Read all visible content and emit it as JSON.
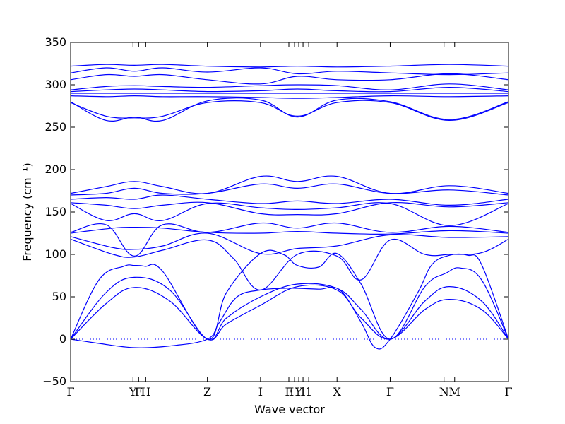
{
  "chart_data": {
    "type": "line",
    "xlabel": "Wave vector",
    "ylabel": "Frequency (cm⁻¹)",
    "ylim": [
      -50,
      350
    ],
    "yticks": [
      -50,
      0,
      50,
      100,
      150,
      200,
      250,
      300,
      350
    ],
    "xlim": [
      0,
      6.18
    ],
    "high_symmetry_points": [
      {
        "label": "Γ",
        "x": 0.0
      },
      {
        "label": "Y",
        "x": 0.88
      },
      {
        "label": "F",
        "x": 0.96
      },
      {
        "label": "H",
        "x": 1.06
      },
      {
        "label": "Z",
        "x": 1.93
      },
      {
        "label": "I",
        "x": 2.68
      },
      {
        "label": "F",
        "x": 3.08
      },
      {
        "label": "H",
        "x": 3.16
      },
      {
        "label": "Y",
        "x": 3.22
      },
      {
        "label": "1",
        "x": 3.28
      },
      {
        "label": "1",
        "x": 3.36
      },
      {
        "label": "X",
        "x": 3.76
      },
      {
        "label": "Γ",
        "x": 4.51
      },
      {
        "label": "N",
        "x": 5.27
      },
      {
        "label": "M",
        "x": 5.42
      },
      {
        "label": "Γ",
        "x": 6.18
      }
    ],
    "zero_line": {
      "y": 0,
      "style": "dotted"
    },
    "series_color": "#0000ff",
    "series": [
      {
        "x": [
          0,
          0.5,
          0.9,
          1.4,
          1.93,
          2.2,
          2.68,
          3.2,
          3.76,
          4.1,
          4.51,
          5.0,
          5.35,
          5.8,
          6.18
        ],
        "values": [
          0,
          42,
          61,
          45,
          0,
          18,
          40,
          62,
          58,
          25,
          0,
          35,
          47,
          35,
          0
        ]
      },
      {
        "x": [
          0,
          0.5,
          0.9,
          1.4,
          1.93,
          2.2,
          2.68,
          3.2,
          3.76,
          4.1,
          4.51,
          5.0,
          5.35,
          5.8,
          6.18
        ],
        "values": [
          0,
          55,
          73,
          58,
          0,
          25,
          50,
          65,
          60,
          35,
          0,
          45,
          62,
          45,
          0
        ]
      },
      {
        "x": [
          0,
          0.4,
          0.75,
          0.9,
          1.05,
          1.3,
          1.93,
          2.2,
          2.68,
          3.0,
          3.2,
          3.5,
          3.76,
          4.1,
          4.51,
          5.0,
          5.3,
          5.5,
          5.8,
          6.18
        ],
        "values": [
          0,
          70,
          86,
          87,
          86,
          80,
          0,
          55,
          101,
          100,
          87,
          85,
          101,
          65,
          0,
          62,
          78,
          84,
          70,
          0
        ]
      },
      {
        "x": [
          0,
          0.4,
          0.9,
          1.4,
          1.93,
          2.1,
          2.35,
          2.68,
          3.0,
          3.2,
          3.5,
          3.8,
          4.1,
          4.3,
          4.51,
          4.9,
          5.1,
          5.35,
          5.6,
          5.8,
          6.18
        ],
        "values": [
          0,
          -5,
          -10,
          -8,
          0,
          20,
          50,
          58,
          60,
          60,
          59,
          58,
          20,
          -10,
          0,
          55,
          88,
          99,
          99,
          88,
          0
        ]
      },
      {
        "x": [
          0,
          0.6,
          0.9,
          1.3,
          1.93,
          2.3,
          2.68,
          3.2,
          3.76,
          4.1,
          4.51,
          5.0,
          5.35,
          5.8,
          6.18
        ],
        "values": [
          118,
          100,
          97,
          105,
          117,
          95,
          58,
          100,
          98,
          70,
          117,
          100,
          100,
          102,
          118
        ]
      },
      {
        "x": [
          0,
          0.6,
          0.9,
          1.3,
          1.93,
          2.68,
          3.2,
          3.76,
          4.51,
          5.35,
          6.18
        ],
        "values": [
          121,
          108,
          106,
          110,
          125,
          101,
          107,
          110,
          123,
          120,
          121
        ]
      },
      {
        "x": [
          0,
          0.6,
          0.9,
          1.3,
          1.93,
          2.68,
          3.2,
          3.76,
          4.51,
          5.35,
          6.18
        ],
        "values": [
          125,
          131,
          132,
          131,
          126,
          125,
          127,
          125,
          124,
          128,
          125
        ]
      },
      {
        "x": [
          0,
          0.5,
          0.9,
          1.3,
          1.93,
          2.68,
          3.2,
          3.76,
          4.51,
          5.35,
          6.18
        ],
        "values": [
          126,
          135,
          98,
          135,
          126,
          137,
          131,
          137,
          126,
          133,
          126
        ]
      },
      {
        "x": [
          0,
          0.5,
          0.9,
          1.3,
          1.93,
          2.68,
          3.2,
          3.76,
          4.51,
          5.35,
          6.18
        ],
        "values": [
          160,
          140,
          148,
          140,
          160,
          155,
          153,
          155,
          160,
          134,
          160
        ]
      },
      {
        "x": [
          0,
          0.5,
          0.9,
          1.3,
          1.93,
          2.68,
          3.2,
          3.76,
          4.51,
          5.35,
          6.18
        ],
        "values": [
          161,
          158,
          154,
          158,
          161,
          148,
          147,
          148,
          161,
          156,
          161
        ]
      },
      {
        "x": [
          0,
          0.5,
          0.9,
          1.3,
          1.93,
          2.68,
          3.2,
          3.76,
          4.51,
          5.35,
          6.18
        ],
        "values": [
          165,
          167,
          165,
          170,
          165,
          160,
          163,
          160,
          165,
          158,
          165
        ]
      },
      {
        "x": [
          0,
          0.5,
          0.9,
          1.3,
          1.93,
          2.68,
          3.2,
          3.76,
          4.51,
          5.35,
          6.18
        ],
        "values": [
          170,
          172,
          178,
          172,
          172,
          183,
          178,
          183,
          172,
          176,
          170
        ]
      },
      {
        "x": [
          0,
          0.5,
          0.9,
          1.3,
          1.93,
          2.68,
          3.2,
          3.76,
          4.51,
          5.35,
          6.18
        ],
        "values": [
          172,
          180,
          186,
          180,
          172,
          192,
          186,
          192,
          172,
          181,
          172
        ]
      },
      {
        "x": [
          0,
          0.5,
          0.9,
          1.3,
          1.93,
          2.68,
          3.2,
          3.76,
          4.51,
          5.35,
          6.18
        ],
        "values": [
          279,
          263,
          261,
          263,
          279,
          279,
          263,
          279,
          279,
          258,
          279
        ]
      },
      {
        "x": [
          0,
          0.5,
          0.9,
          1.3,
          1.93,
          2.68,
          3.2,
          3.76,
          4.51,
          5.35,
          6.18
        ],
        "values": [
          280,
          258,
          262,
          258,
          281,
          282,
          262,
          282,
          280,
          259,
          280
        ]
      },
      {
        "x": [
          0,
          0.5,
          0.9,
          1.3,
          1.93,
          2.68,
          3.2,
          3.76,
          4.51,
          5.35,
          6.18
        ],
        "values": [
          287,
          286,
          287,
          286,
          286,
          285,
          284,
          285,
          287,
          286,
          287
        ]
      },
      {
        "x": [
          0,
          0.5,
          0.9,
          1.3,
          1.93,
          2.68,
          3.2,
          3.76,
          4.51,
          5.35,
          6.18
        ],
        "values": [
          290,
          290,
          290,
          290,
          290,
          290,
          290,
          290,
          290,
          290,
          290
        ]
      },
      {
        "x": [
          0,
          0.5,
          0.9,
          1.3,
          1.93,
          2.68,
          3.2,
          3.76,
          4.51,
          5.35,
          6.18
        ],
        "values": [
          292,
          294,
          295,
          294,
          292,
          293,
          295,
          293,
          292,
          297,
          292
        ]
      },
      {
        "x": [
          0,
          0.5,
          0.9,
          1.3,
          1.93,
          2.68,
          3.2,
          3.76,
          4.51,
          5.35,
          6.18
        ],
        "values": [
          294,
          298,
          299,
          298,
          297,
          299,
          300,
          299,
          294,
          301,
          294
        ]
      },
      {
        "x": [
          0,
          0.5,
          0.9,
          1.3,
          1.93,
          2.68,
          3.2,
          3.76,
          4.51,
          5.35,
          6.18
        ],
        "values": [
          306,
          312,
          310,
          312,
          306,
          301,
          310,
          306,
          306,
          313,
          306
        ]
      },
      {
        "x": [
          0,
          0.5,
          0.9,
          1.3,
          1.93,
          2.68,
          3.2,
          3.76,
          4.51,
          5.35,
          6.18
        ],
        "values": [
          314,
          320,
          316,
          320,
          315,
          320,
          313,
          316,
          314,
          312,
          314
        ]
      },
      {
        "x": [
          0,
          0.5,
          0.9,
          1.3,
          1.93,
          2.68,
          3.2,
          3.76,
          4.51,
          5.35,
          6.18
        ],
        "values": [
          322,
          324,
          323,
          324,
          322,
          321,
          322,
          321,
          322,
          324,
          322
        ]
      }
    ]
  }
}
